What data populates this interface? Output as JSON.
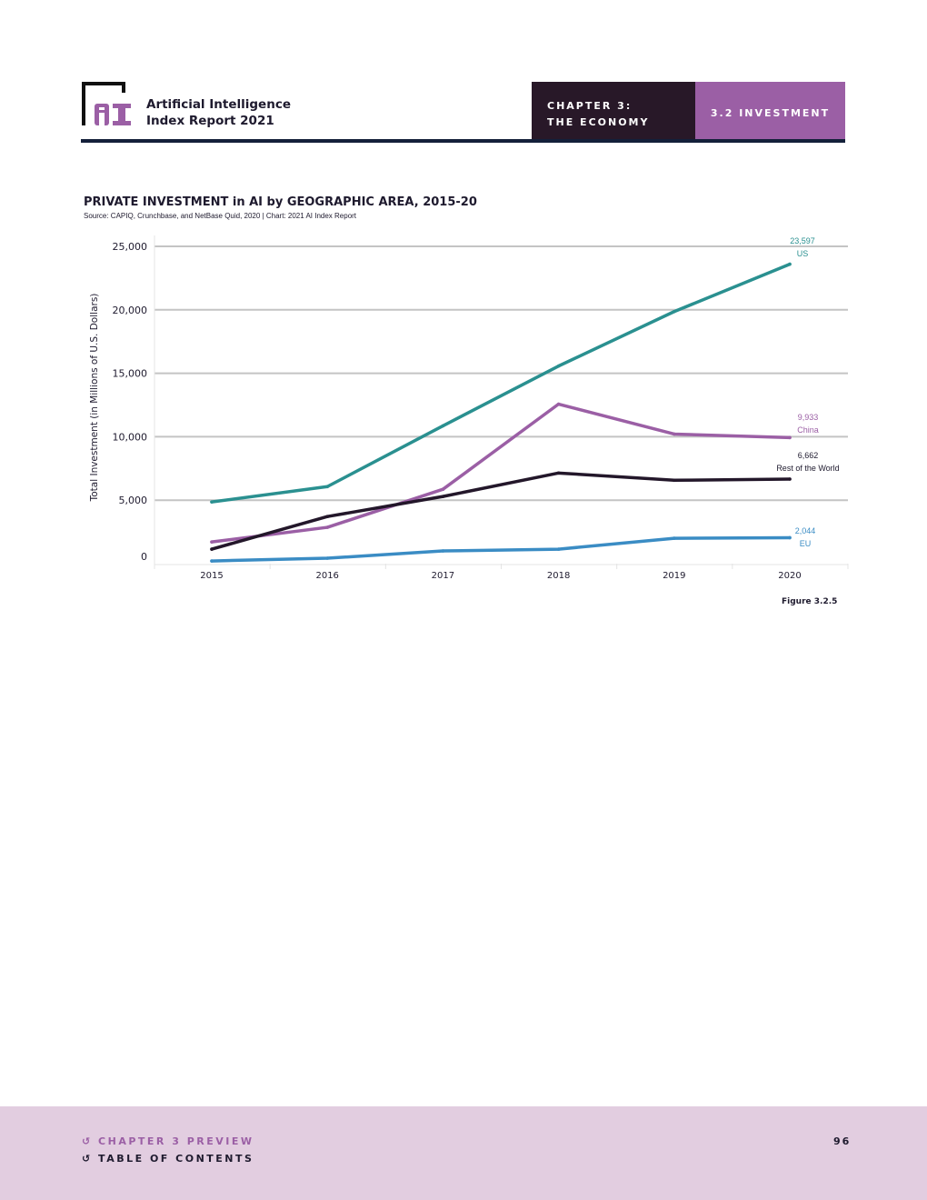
{
  "header": {
    "brand_line1": "Artificial Intelligence",
    "brand_line2": "Index Report 2021",
    "chapter_line1": "CHAPTER 3:",
    "chapter_line2": "THE ECONOMY",
    "section": "3.2 INVESTMENT"
  },
  "figure_label": "Figure 3.2.5",
  "footer": {
    "chapter_preview": "CHAPTER 3 PREVIEW",
    "toc": "TABLE OF CONTENTS",
    "page": "96"
  },
  "chart_data": {
    "type": "line",
    "title": "PRIVATE INVESTMENT in AI by GEOGRAPHIC AREA, 2015-20",
    "source": "Source: CAPIQ, Crunchbase, and NetBase Quid, 2020 | Chart: 2021 AI Index Report",
    "xlabel": "",
    "ylabel": "Total Investment (in Millions of U.S. Dollars)",
    "x": [
      "2015",
      "2016",
      "2017",
      "2018",
      "2019",
      "2020"
    ],
    "ylim": [
      0,
      25000
    ],
    "yticks": [
      0,
      5000,
      10000,
      15000,
      20000,
      25000
    ],
    "ytick_labels": [
      "0",
      "5,000",
      "10,000",
      "15,000",
      "20,000",
      "25,000"
    ],
    "grid": true,
    "series": [
      {
        "name": "US",
        "color": "#2a9090",
        "values": [
          4860,
          6070,
          10860,
          15570,
          19860,
          23597
        ],
        "end_label": "23,597"
      },
      {
        "name": "China",
        "color": "#9b5fa5",
        "values": [
          1710,
          2860,
          5860,
          12570,
          10210,
          9933
        ],
        "end_label": "9,933"
      },
      {
        "name": "Rest of the World",
        "color": "#23172a",
        "values": [
          1140,
          3710,
          5290,
          7140,
          6570,
          6662
        ],
        "end_label": "6,662"
      },
      {
        "name": "EU",
        "color": "#3a8cc4",
        "values": [
          210,
          430,
          1000,
          1140,
          2000,
          2044
        ],
        "end_label": "2,044"
      }
    ]
  }
}
